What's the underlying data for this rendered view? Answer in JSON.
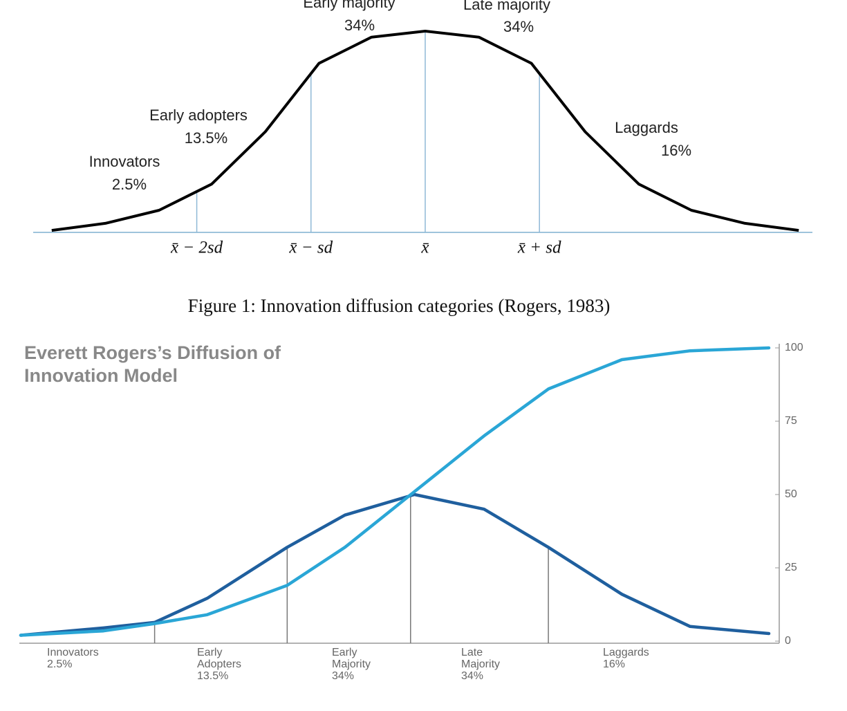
{
  "chart_data": [
    {
      "type": "line",
      "x": [
        -3.27,
        -2.8,
        -2.33,
        -1.87,
        -1.4,
        -0.93,
        -0.47,
        0,
        0.47,
        0.93,
        1.4,
        1.87,
        2.33,
        2.8,
        3.27
      ],
      "values": [
        1,
        4.5,
        11,
        24,
        50,
        84,
        97,
        100,
        97,
        84,
        50,
        24,
        11,
        4.5,
        1
      ],
      "color": "#000000",
      "xlim": [
        -3.42,
        3.39
      ],
      "ylim": [
        0,
        100
      ],
      "xticks": [
        {
          "value": -2,
          "label": "x̄ − 2sd"
        },
        {
          "value": -1,
          "label": "x̄ − sd"
        },
        {
          "value": 0,
          "label": "x̄"
        },
        {
          "value": 1,
          "label": "x̄ + sd"
        }
      ],
      "annotations": [
        "Early majority",
        "34%",
        "Late majority",
        "34%",
        "Early adopters",
        "13.5%",
        "Innovators",
        "2.5%",
        "Laggards",
        "16%"
      ]
    },
    {
      "type": "line",
      "title": [
        "Everett Rogers’s Diffusion of",
        "Innovation Model"
      ],
      "x": [
        -3,
        -2.37,
        -1.98,
        -1.58,
        -0.97,
        -0.53,
        0,
        0.53,
        1.02,
        1.58,
        2.1,
        2.7
      ],
      "series": [
        {
          "color": "#1f5f9e",
          "values": [
            2,
            4.5,
            6.4,
            14.6,
            32,
            43,
            50,
            45,
            32,
            16,
            5,
            2.6
          ]
        },
        {
          "color": "#2aa6d6",
          "values": [
            2,
            3.5,
            6,
            9,
            19,
            32,
            51,
            70,
            86,
            96,
            99,
            100
          ]
        }
      ],
      "xlim": [
        -3,
        2.7
      ],
      "ylim": [
        0,
        100
      ],
      "yticks": [
        0,
        25,
        50,
        75,
        100
      ],
      "dividers": [
        -1.98,
        -0.97,
        -0.03,
        1.02
      ],
      "categories": [
        [
          "Innovators",
          "2.5%"
        ],
        [
          "Early",
          "Adopters",
          "13.5%"
        ],
        [
          "Early",
          "Majority",
          "34%"
        ],
        [
          "Late",
          "Majority",
          "34%"
        ],
        [
          "Laggards",
          "16%"
        ]
      ]
    }
  ],
  "caption": "Figure 1: Innovation diffusion categories (Rogers, 1983)"
}
